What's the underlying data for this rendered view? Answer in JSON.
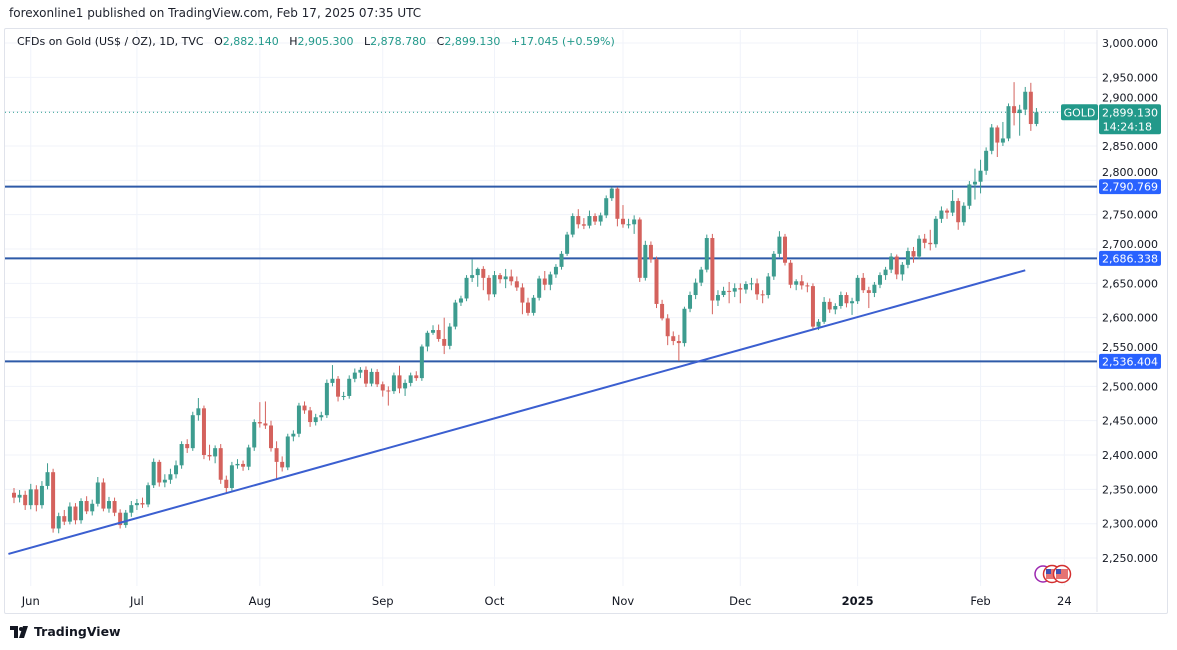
{
  "publish_line": "forexonline1 published on TradingView.com, Feb 17, 2025 07:35 UTC",
  "legend": {
    "symbol": "CFDs on Gold (US$ / OZ), 1D, TVC",
    "open_prefix": "O",
    "open": "2,882.140",
    "high_prefix": "H",
    "high": "2,905.300",
    "low_prefix": "L",
    "low": "2,878.780",
    "close_prefix": "C",
    "close": "2,899.130",
    "change": "+17.045 (+0.59%)"
  },
  "price_tag": {
    "symbol": "GOLD",
    "price": "2,899.130",
    "countdown": "14:24:18"
  },
  "footer_logo": "TradingView",
  "colors": {
    "up": "#3d9c8f",
    "down": "#d4625d",
    "levels": "#2e5aa8",
    "trendline": "#3b5fd0",
    "price_tag": "#22998a",
    "level_tag": "#2962ff"
  },
  "chart_data": {
    "type": "candlestick",
    "title": "",
    "xlabel": "",
    "ylabel": "",
    "ylim": [
      2225,
      3020
    ],
    "y_ticks": [
      "2,250.000",
      "2,300.000",
      "2,350.000",
      "2,400.000",
      "2,450.000",
      "2,500.000",
      "2,550.000",
      "2,600.000",
      "2,650.000",
      "2,700.000",
      "2,750.000",
      "2,800.000",
      "2,850.000",
      "2,900.000",
      "2,950.000",
      "3,000.000"
    ],
    "x_ticks": [
      {
        "label": "Jun",
        "date": "2024-06-03"
      },
      {
        "label": "Jul",
        "date": "2024-07-01"
      },
      {
        "label": "Aug",
        "date": "2024-08-01"
      },
      {
        "label": "Sep",
        "date": "2024-09-03"
      },
      {
        "label": "Oct",
        "date": "2024-10-01"
      },
      {
        "label": "Nov",
        "date": "2024-11-01"
      },
      {
        "label": "Dec",
        "date": "2024-12-02"
      },
      {
        "label": "2025",
        "date": "2025-01-02"
      },
      {
        "label": "Feb",
        "date": "2025-02-03"
      },
      {
        "label": "24",
        "date": "2025-02-24"
      }
    ],
    "horizontal_levels": [
      {
        "value": 2790.769,
        "label": "2,790.769"
      },
      {
        "value": 2686.338,
        "label": "2,686.338"
      },
      {
        "value": 2536.404,
        "label": "2,536.404"
      }
    ],
    "trendline": {
      "from": {
        "date": "2024-05-28",
        "price": 2256
      },
      "to": {
        "date": "2025-02-13",
        "price": 2669
      }
    },
    "last_price": 2899.13,
    "grid": true,
    "candles_fields": [
      "date",
      "open",
      "high",
      "low",
      "close"
    ],
    "candles": [
      [
        "2024-05-29",
        2345,
        2352,
        2330,
        2338
      ],
      [
        "2024-05-30",
        2338,
        2349,
        2331,
        2342
      ],
      [
        "2024-05-31",
        2342,
        2348,
        2320,
        2327
      ],
      [
        "2024-06-03",
        2327,
        2358,
        2321,
        2350
      ],
      [
        "2024-06-04",
        2350,
        2356,
        2318,
        2327
      ],
      [
        "2024-06-05",
        2327,
        2362,
        2322,
        2355
      ],
      [
        "2024-06-06",
        2355,
        2388,
        2350,
        2375
      ],
      [
        "2024-06-07",
        2375,
        2380,
        2287,
        2293
      ],
      [
        "2024-06-10",
        2293,
        2316,
        2286,
        2311
      ],
      [
        "2024-06-11",
        2311,
        2320,
        2298,
        2303
      ],
      [
        "2024-06-12",
        2303,
        2331,
        2299,
        2325
      ],
      [
        "2024-06-13",
        2325,
        2330,
        2299,
        2305
      ],
      [
        "2024-06-14",
        2305,
        2337,
        2300,
        2333
      ],
      [
        "2024-06-17",
        2333,
        2340,
        2314,
        2318
      ],
      [
        "2024-06-18",
        2318,
        2335,
        2312,
        2329
      ],
      [
        "2024-06-20",
        2329,
        2368,
        2325,
        2360
      ],
      [
        "2024-06-21",
        2360,
        2366,
        2318,
        2322
      ],
      [
        "2024-06-24",
        2322,
        2339,
        2316,
        2333
      ],
      [
        "2024-06-25",
        2333,
        2338,
        2311,
        2316
      ],
      [
        "2024-06-26",
        2316,
        2321,
        2293,
        2298
      ],
      [
        "2024-06-27",
        2298,
        2320,
        2294,
        2316
      ],
      [
        "2024-06-28",
        2316,
        2333,
        2310,
        2327
      ],
      [
        "2024-07-01",
        2327,
        2336,
        2320,
        2330
      ],
      [
        "2024-07-02",
        2330,
        2338,
        2323,
        2328
      ],
      [
        "2024-07-03",
        2328,
        2360,
        2324,
        2356
      ],
      [
        "2024-07-05",
        2356,
        2395,
        2352,
        2390
      ],
      [
        "2024-07-08",
        2390,
        2393,
        2354,
        2360
      ],
      [
        "2024-07-09",
        2360,
        2372,
        2353,
        2364
      ],
      [
        "2024-07-10",
        2364,
        2380,
        2358,
        2372
      ],
      [
        "2024-07-11",
        2372,
        2392,
        2366,
        2385
      ],
      [
        "2024-07-12",
        2385,
        2420,
        2380,
        2416
      ],
      [
        "2024-07-15",
        2416,
        2423,
        2403,
        2410
      ],
      [
        "2024-07-16",
        2410,
        2463,
        2406,
        2458
      ],
      [
        "2024-07-17",
        2458,
        2483,
        2450,
        2468
      ],
      [
        "2024-07-18",
        2468,
        2472,
        2394,
        2400
      ],
      [
        "2024-07-19",
        2400,
        2415,
        2392,
        2398
      ],
      [
        "2024-07-22",
        2398,
        2414,
        2388,
        2410
      ],
      [
        "2024-07-23",
        2410,
        2416,
        2358,
        2364
      ],
      [
        "2024-07-24",
        2364,
        2370,
        2345,
        2352
      ],
      [
        "2024-07-25",
        2352,
        2390,
        2348,
        2385
      ],
      [
        "2024-07-26",
        2385,
        2394,
        2380,
        2387
      ],
      [
        "2024-07-29",
        2387,
        2392,
        2377,
        2383
      ],
      [
        "2024-07-30",
        2383,
        2415,
        2378,
        2411
      ],
      [
        "2024-07-31",
        2411,
        2452,
        2406,
        2448
      ],
      [
        "2024-08-01",
        2448,
        2477,
        2440,
        2446
      ],
      [
        "2024-08-02",
        2446,
        2478,
        2438,
        2443
      ],
      [
        "2024-08-05",
        2443,
        2450,
        2405,
        2410
      ],
      [
        "2024-08-06",
        2410,
        2420,
        2364,
        2390
      ],
      [
        "2024-08-07",
        2390,
        2398,
        2376,
        2382
      ],
      [
        "2024-08-08",
        2382,
        2431,
        2378,
        2427
      ],
      [
        "2024-08-09",
        2427,
        2436,
        2420,
        2431
      ],
      [
        "2024-08-12",
        2431,
        2476,
        2426,
        2472
      ],
      [
        "2024-08-13",
        2472,
        2478,
        2460,
        2465
      ],
      [
        "2024-08-14",
        2465,
        2470,
        2441,
        2448
      ],
      [
        "2024-08-15",
        2448,
        2460,
        2443,
        2455
      ],
      [
        "2024-08-16",
        2455,
        2463,
        2450,
        2458
      ],
      [
        "2024-08-19",
        2458,
        2510,
        2454,
        2505
      ],
      [
        "2024-08-20",
        2505,
        2531,
        2500,
        2511
      ],
      [
        "2024-08-21",
        2511,
        2515,
        2478,
        2485
      ],
      [
        "2024-08-22",
        2485,
        2492,
        2480,
        2486
      ],
      [
        "2024-08-23",
        2486,
        2516,
        2482,
        2511
      ],
      [
        "2024-08-26",
        2511,
        2526,
        2506,
        2520
      ],
      [
        "2024-08-27",
        2520,
        2528,
        2512,
        2524
      ],
      [
        "2024-08-28",
        2524,
        2529,
        2499,
        2504
      ],
      [
        "2024-08-29",
        2504,
        2526,
        2500,
        2521
      ],
      [
        "2024-08-30",
        2521,
        2525,
        2499,
        2503
      ],
      [
        "2024-09-03",
        2503,
        2507,
        2485,
        2494
      ],
      [
        "2024-09-04",
        2494,
        2500,
        2472,
        2493
      ],
      [
        "2024-09-05",
        2493,
        2520,
        2489,
        2516
      ],
      [
        "2024-09-06",
        2516,
        2530,
        2490,
        2497
      ],
      [
        "2024-09-09",
        2497,
        2510,
        2486,
        2505
      ],
      [
        "2024-09-10",
        2505,
        2520,
        2500,
        2516
      ],
      [
        "2024-09-11",
        2516,
        2522,
        2508,
        2512
      ],
      [
        "2024-09-12",
        2512,
        2561,
        2508,
        2558
      ],
      [
        "2024-09-13",
        2558,
        2581,
        2551,
        2578
      ],
      [
        "2024-09-16",
        2578,
        2589,
        2575,
        2582
      ],
      [
        "2024-09-17",
        2582,
        2590,
        2565,
        2569
      ],
      [
        "2024-09-18",
        2569,
        2600,
        2547,
        2559
      ],
      [
        "2024-09-19",
        2559,
        2592,
        2554,
        2587
      ],
      [
        "2024-09-20",
        2587,
        2626,
        2583,
        2622
      ],
      [
        "2024-09-23",
        2622,
        2632,
        2617,
        2628
      ],
      [
        "2024-09-24",
        2628,
        2662,
        2624,
        2658
      ],
      [
        "2024-09-25",
        2658,
        2685,
        2652,
        2662
      ],
      [
        "2024-09-26",
        2662,
        2673,
        2645,
        2671
      ],
      [
        "2024-09-27",
        2671,
        2675,
        2640,
        2658
      ],
      [
        "2024-09-30",
        2658,
        2662,
        2625,
        2634
      ],
      [
        "2024-10-01",
        2634,
        2668,
        2630,
        2662
      ],
      [
        "2024-10-02",
        2662,
        2665,
        2650,
        2656
      ],
      [
        "2024-10-03",
        2656,
        2671,
        2643,
        2660
      ],
      [
        "2024-10-04",
        2660,
        2670,
        2647,
        2653
      ],
      [
        "2024-10-07",
        2653,
        2660,
        2639,
        2644
      ],
      [
        "2024-10-08",
        2644,
        2650,
        2605,
        2622
      ],
      [
        "2024-10-09",
        2622,
        2629,
        2603,
        2607
      ],
      [
        "2024-10-10",
        2607,
        2633,
        2603,
        2629
      ],
      [
        "2024-10-11",
        2629,
        2661,
        2625,
        2657
      ],
      [
        "2024-10-14",
        2657,
        2668,
        2640,
        2648
      ],
      [
        "2024-10-15",
        2648,
        2667,
        2640,
        2663
      ],
      [
        "2024-10-16",
        2663,
        2678,
        2658,
        2674
      ],
      [
        "2024-10-17",
        2674,
        2697,
        2670,
        2693
      ],
      [
        "2024-10-18",
        2693,
        2725,
        2690,
        2721
      ],
      [
        "2024-10-21",
        2721,
        2752,
        2717,
        2748
      ],
      [
        "2024-10-22",
        2748,
        2758,
        2730,
        2736
      ],
      [
        "2024-10-23",
        2736,
        2745,
        2729,
        2734
      ],
      [
        "2024-10-24",
        2734,
        2756,
        2730,
        2748
      ],
      [
        "2024-10-25",
        2748,
        2752,
        2735,
        2740
      ],
      [
        "2024-10-28",
        2740,
        2753,
        2734,
        2749
      ],
      [
        "2024-10-29",
        2749,
        2778,
        2745,
        2774
      ],
      [
        "2024-10-30",
        2774,
        2790,
        2770,
        2788
      ],
      [
        "2024-10-31",
        2788,
        2790,
        2733,
        2744
      ],
      [
        "2024-11-01",
        2744,
        2764,
        2731,
        2736
      ],
      [
        "2024-11-04",
        2736,
        2744,
        2730,
        2736
      ],
      [
        "2024-11-05",
        2736,
        2749,
        2722,
        2743
      ],
      [
        "2024-11-06",
        2743,
        2746,
        2652,
        2658
      ],
      [
        "2024-11-07",
        2658,
        2712,
        2654,
        2706
      ],
      [
        "2024-11-08",
        2706,
        2711,
        2680,
        2685
      ],
      [
        "2024-11-11",
        2685,
        2689,
        2614,
        2620
      ],
      [
        "2024-11-12",
        2620,
        2626,
        2596,
        2599
      ],
      [
        "2024-11-13",
        2599,
        2605,
        2560,
        2573
      ],
      [
        "2024-11-14",
        2573,
        2580,
        2560,
        2566
      ],
      [
        "2024-11-15",
        2566,
        2575,
        2537,
        2563
      ],
      [
        "2024-11-18",
        2563,
        2616,
        2558,
        2613
      ],
      [
        "2024-11-19",
        2613,
        2638,
        2608,
        2633
      ],
      [
        "2024-11-20",
        2633,
        2657,
        2627,
        2651
      ],
      [
        "2024-11-21",
        2651,
        2674,
        2646,
        2670
      ],
      [
        "2024-11-22",
        2670,
        2721,
        2666,
        2716
      ],
      [
        "2024-11-25",
        2716,
        2722,
        2605,
        2625
      ],
      [
        "2024-11-26",
        2625,
        2640,
        2617,
        2633
      ],
      [
        "2024-11-27",
        2633,
        2645,
        2630,
        2639
      ],
      [
        "2024-11-28",
        2639,
        2652,
        2621,
        2638
      ],
      [
        "2024-11-29",
        2638,
        2650,
        2630,
        2643
      ],
      [
        "2024-12-02",
        2643,
        2650,
        2621,
        2641
      ],
      [
        "2024-12-03",
        2641,
        2653,
        2635,
        2649
      ],
      [
        "2024-12-04",
        2649,
        2658,
        2640,
        2650
      ],
      [
        "2024-12-05",
        2650,
        2657,
        2626,
        2634
      ],
      [
        "2024-12-06",
        2634,
        2640,
        2621,
        2633
      ],
      [
        "2024-12-09",
        2633,
        2665,
        2628,
        2660
      ],
      [
        "2024-12-10",
        2660,
        2697,
        2655,
        2693
      ],
      [
        "2024-12-11",
        2693,
        2726,
        2688,
        2718
      ],
      [
        "2024-12-12",
        2718,
        2722,
        2676,
        2680
      ],
      [
        "2024-12-13",
        2680,
        2684,
        2643,
        2648
      ],
      [
        "2024-12-16",
        2648,
        2656,
        2640,
        2653
      ],
      [
        "2024-12-17",
        2653,
        2662,
        2641,
        2647
      ],
      [
        "2024-12-18",
        2647,
        2651,
        2637,
        2646
      ],
      [
        "2024-12-19",
        2646,
        2650,
        2582,
        2587
      ],
      [
        "2024-12-20",
        2587,
        2598,
        2582,
        2594
      ],
      [
        "2024-12-23",
        2594,
        2630,
        2591,
        2623
      ],
      [
        "2024-12-24",
        2623,
        2628,
        2607,
        2612
      ],
      [
        "2024-12-26",
        2612,
        2621,
        2605,
        2617
      ],
      [
        "2024-12-27",
        2617,
        2638,
        2613,
        2633
      ],
      [
        "2024-12-30",
        2633,
        2637,
        2615,
        2621
      ],
      [
        "2024-12-31",
        2621,
        2629,
        2604,
        2624
      ],
      [
        "2025-01-02",
        2624,
        2662,
        2620,
        2658
      ],
      [
        "2025-01-03",
        2658,
        2665,
        2636,
        2640
      ],
      [
        "2025-01-06",
        2640,
        2645,
        2614,
        2636
      ],
      [
        "2025-01-07",
        2636,
        2652,
        2630,
        2648
      ],
      [
        "2025-01-08",
        2648,
        2666,
        2643,
        2662
      ],
      [
        "2025-01-09",
        2662,
        2674,
        2655,
        2670
      ],
      [
        "2025-01-10",
        2670,
        2694,
        2665,
        2689
      ],
      [
        "2025-01-13",
        2689,
        2692,
        2656,
        2663
      ],
      [
        "2025-01-14",
        2663,
        2681,
        2654,
        2677
      ],
      [
        "2025-01-15",
        2677,
        2702,
        2672,
        2697
      ],
      [
        "2025-01-16",
        2697,
        2703,
        2680,
        2689
      ],
      [
        "2025-01-17",
        2689,
        2720,
        2685,
        2715
      ],
      [
        "2025-01-20",
        2715,
        2722,
        2701,
        2709
      ],
      [
        "2025-01-21",
        2709,
        2728,
        2698,
        2707
      ],
      [
        "2025-01-22",
        2707,
        2748,
        2702,
        2744
      ],
      [
        "2025-01-23",
        2744,
        2762,
        2738,
        2756
      ],
      [
        "2025-01-24",
        2756,
        2759,
        2744,
        2753
      ],
      [
        "2025-01-27",
        2753,
        2786,
        2748,
        2770
      ],
      [
        "2025-01-28",
        2770,
        2774,
        2728,
        2739
      ],
      [
        "2025-01-29",
        2739,
        2768,
        2734,
        2763
      ],
      [
        "2025-01-30",
        2763,
        2799,
        2758,
        2794
      ],
      [
        "2025-01-31",
        2794,
        2817,
        2772,
        2798
      ],
      [
        "2025-02-03",
        2798,
        2830,
        2781,
        2814
      ],
      [
        "2025-02-04",
        2814,
        2848,
        2808,
        2843
      ],
      [
        "2025-02-05",
        2843,
        2882,
        2838,
        2877
      ],
      [
        "2025-02-06",
        2877,
        2880,
        2834,
        2855
      ],
      [
        "2025-02-07",
        2855,
        2885,
        2850,
        2861
      ],
      [
        "2025-02-10",
        2861,
        2912,
        2857,
        2908
      ],
      [
        "2025-02-11",
        2908,
        2943,
        2880,
        2898
      ],
      [
        "2025-02-12",
        2898,
        2910,
        2865,
        2903
      ],
      [
        "2025-02-13",
        2903,
        2936,
        2895,
        2929
      ],
      [
        "2025-02-14",
        2929,
        2942,
        2872,
        2882
      ],
      [
        "2025-02-17",
        2882.14,
        2905.3,
        2878.78,
        2899.13
      ]
    ]
  }
}
